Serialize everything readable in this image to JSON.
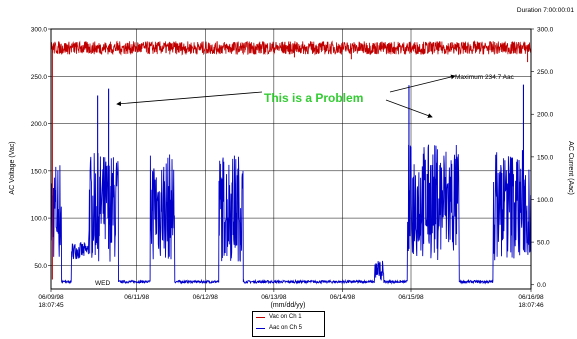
{
  "header": {
    "duration": "Duration 7:00:00:01"
  },
  "legend": {
    "vac_label": "Vac on Ch 1",
    "aac_label": "Aac on Ch 5"
  },
  "annotations": {
    "problem": "This is a Problem",
    "maximum": "Maximum 234.7 Aac",
    "day_marker": "WED"
  },
  "colors": {
    "voltage": "#c00000",
    "current": "#0000c8",
    "problem_text": "#33cc33",
    "grid": "#000000"
  },
  "chart_data": {
    "type": "line",
    "title": "",
    "xlabel": "(mm/dd/yy)",
    "ylabel_left": "AC Voltage (Vac)",
    "ylabel_right": "AC Current (Aac)",
    "ylim_left": [
      25,
      300
    ],
    "ylim_right": [
      -5,
      300
    ],
    "yticks_left": [
      "50.0",
      "100.0",
      "150.0",
      "200.0",
      "250.0",
      "300.0"
    ],
    "yticks_right": [
      "0.0",
      "50.0",
      "100.0",
      "150.0",
      "200.0",
      "250.0",
      "300.0"
    ],
    "x_ticks": [
      {
        "day": 0,
        "label": "06/09/98",
        "sublabel": "18:07:45"
      },
      {
        "day": 1.25,
        "label": "06/11/98",
        "sublabel": ""
      },
      {
        "day": 2.25,
        "label": "06/12/98",
        "sublabel": ""
      },
      {
        "day": 3.25,
        "label": "06/13/98",
        "sublabel": ""
      },
      {
        "day": 4.25,
        "label": "06/14/98",
        "sublabel": ""
      },
      {
        "day": 5.25,
        "label": "06/15/98",
        "sublabel": ""
      },
      {
        "day": 7.0,
        "label": "06/16/98",
        "sublabel": "18:07:46"
      }
    ],
    "x_range_days": [
      0,
      7.0
    ],
    "grid": true,
    "legend_position": "bottom-center",
    "series": [
      {
        "name": "Vac on Ch 1",
        "axis": "left",
        "base": 280,
        "noise": 7,
        "dips": [
          {
            "day": 0.02,
            "value": 35
          },
          {
            "day": 3.55,
            "value": 270
          },
          {
            "day": 4.38,
            "value": 268
          },
          {
            "day": 6.95,
            "value": 265
          }
        ]
      },
      {
        "name": "Aac on Ch 5",
        "axis": "right",
        "baseline": 2,
        "segments": [
          {
            "start": 0.0,
            "end": 0.15,
            "level": 130
          },
          {
            "start": 0.55,
            "end": 0.98,
            "level": 135,
            "pre_level": 40,
            "pre_start": 0.3
          },
          {
            "start": 1.45,
            "end": 1.8,
            "level": 135
          },
          {
            "start": 2.45,
            "end": 2.8,
            "level": 135
          },
          {
            "start": 4.72,
            "end": 4.85,
            "level": 25
          },
          {
            "start": 5.2,
            "end": 5.95,
            "level": 145
          },
          {
            "start": 6.45,
            "end": 7.0,
            "level": 140
          }
        ],
        "spikes": [
          {
            "day": 0.68,
            "value": 222
          },
          {
            "day": 0.84,
            "value": 230
          },
          {
            "day": 5.22,
            "value": 234
          },
          {
            "day": 6.89,
            "value": 234.7
          }
        ]
      }
    ]
  }
}
